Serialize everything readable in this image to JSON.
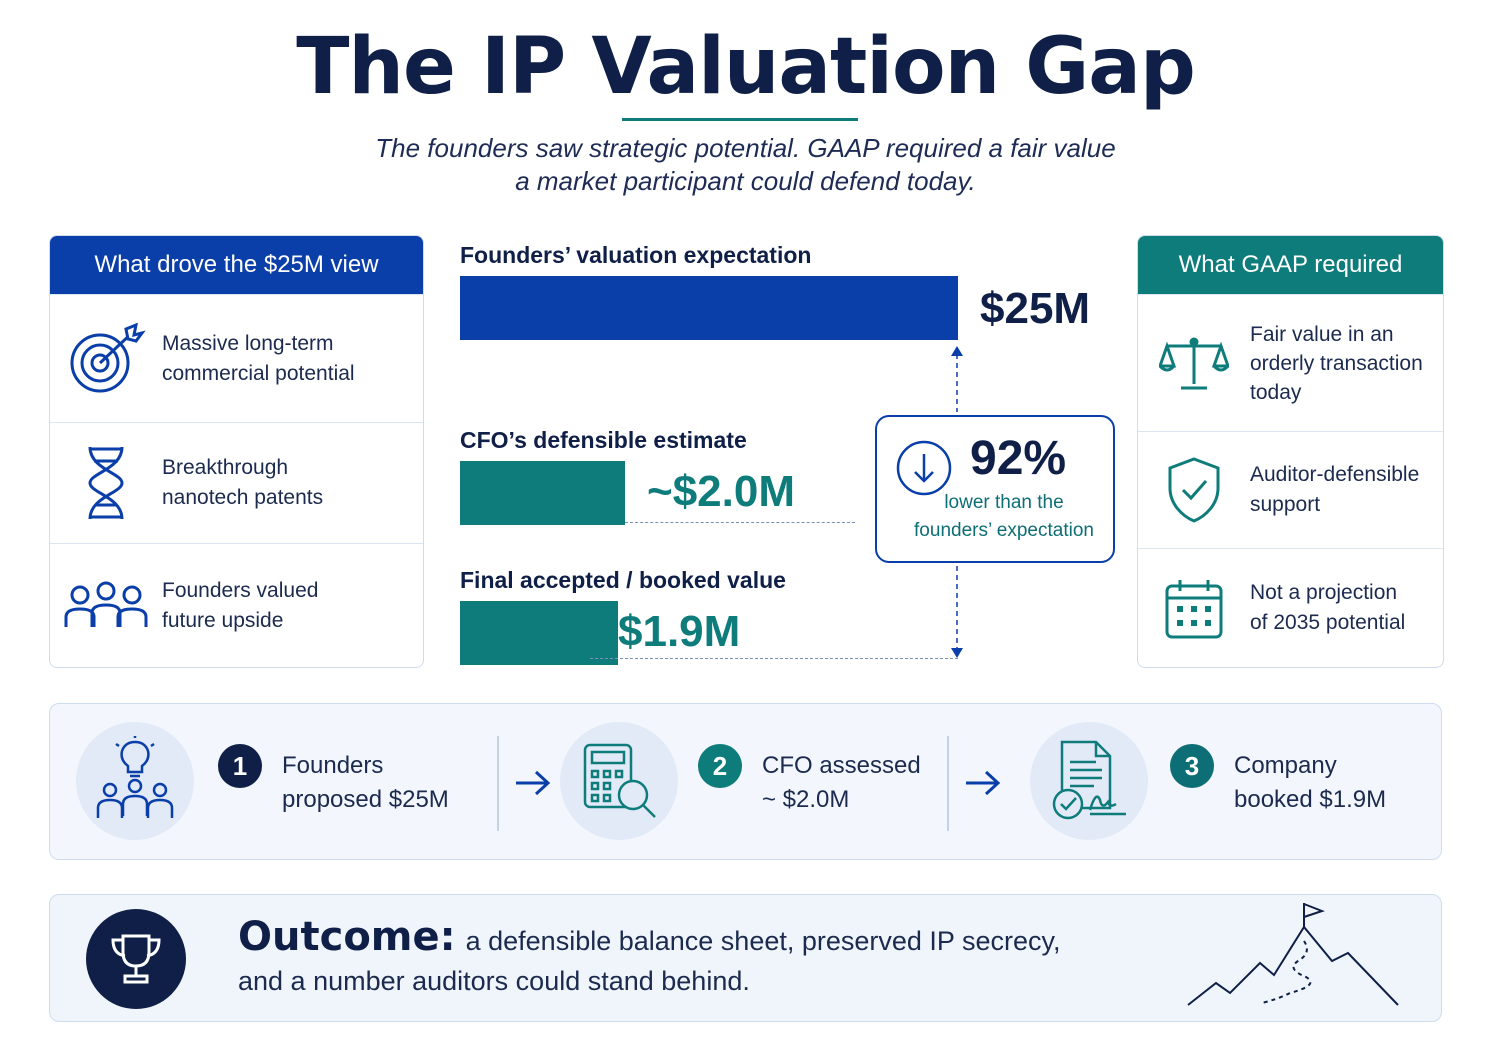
{
  "header": {
    "title": "The IP Valuation Gap",
    "subtitle_line1": "The founders saw strategic potential. GAAP required a fair value",
    "subtitle_line2": "a market participant could defend today."
  },
  "left_panel": {
    "title": "What drove the $25M view",
    "items": [
      {
        "line1": "Massive long-term",
        "line2": "commercial potential",
        "icon": "target-icon"
      },
      {
        "line1": "Breakthrough",
        "line2": "nanotech patents",
        "icon": "dna-icon"
      },
      {
        "line1": "Founders valued",
        "line2": "future upside",
        "icon": "people-icon"
      }
    ]
  },
  "right_panel": {
    "title": "What GAAP required",
    "items": [
      {
        "line1": "Fair value in an",
        "line2": "orderly transaction",
        "line3": "today",
        "icon": "scales-icon"
      },
      {
        "line1": "Auditor-defensible",
        "line2": "support",
        "icon": "shield-check-icon"
      },
      {
        "line1": "Not a projection",
        "line2": "of 2035 potential",
        "icon": "calendar-icon"
      }
    ]
  },
  "chart_data": {
    "type": "bar",
    "orientation": "horizontal",
    "unit": "$M",
    "categories": [
      "Founders’ valuation expectation",
      "CFO’s defensible estimate",
      "Final accepted / booked value"
    ],
    "values": [
      25,
      2.0,
      1.9
    ],
    "value_labels": [
      "$25M",
      "~$2.0M",
      "$1.9M"
    ],
    "colors": [
      "#0a3ea8",
      "#0e7c7b",
      "#0e7c7b"
    ],
    "annotation": {
      "value": "92%",
      "line1": "lower than the",
      "line2": "founders’ expectation"
    }
  },
  "process": {
    "steps": [
      {
        "num": "1",
        "line1": "Founders",
        "line2": "proposed $25M",
        "icon": "idea-team-icon"
      },
      {
        "num": "2",
        "line1": "CFO assessed",
        "line2": "~ $2.0M",
        "icon": "calculator-search-icon"
      },
      {
        "num": "3",
        "line1": "Company",
        "line2": "booked $1.9M",
        "icon": "signed-document-icon"
      }
    ]
  },
  "outcome": {
    "label": "Outcome:",
    "line1": "a defensible balance sheet, preserved IP secrecy,",
    "line2": "and a number auditors could stand behind."
  },
  "colors": {
    "navy": "#0f1f47",
    "blue": "#0a3ea8",
    "teal": "#0e7c7b"
  }
}
